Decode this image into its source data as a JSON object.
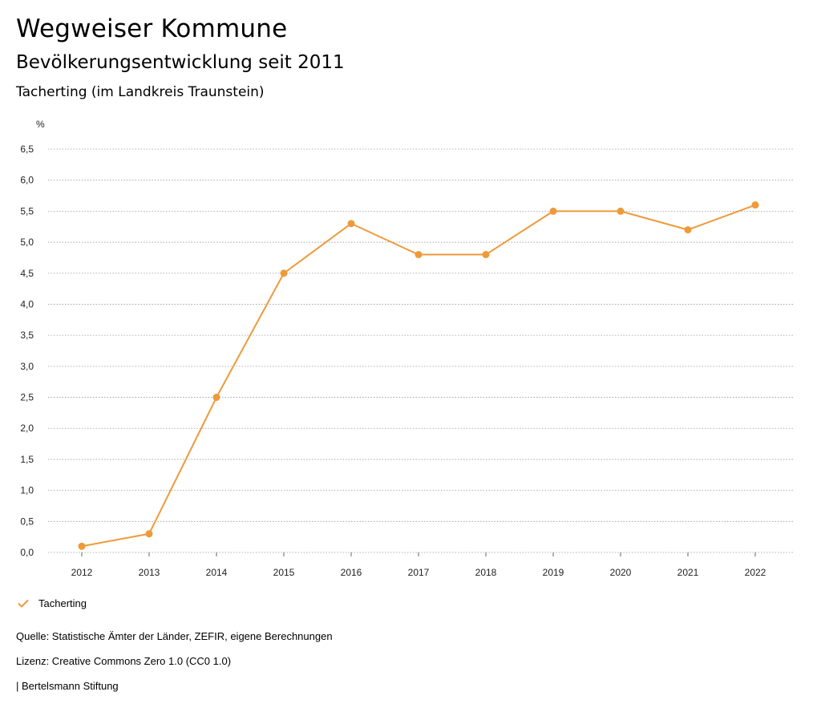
{
  "header": {
    "title": "Wegweiser Kommune",
    "subtitle": "Bevölkerungsentwicklung seit 2011",
    "place": "Tacherting (im Landkreis Traunstein)"
  },
  "chart_data": {
    "type": "line",
    "title": "Bevölkerungsentwicklung seit 2011",
    "ylabel": "%",
    "xlabel": "",
    "ylim": [
      0,
      6.5
    ],
    "yticks": [
      "0,0",
      "0,5",
      "1,0",
      "1,5",
      "2,0",
      "2,5",
      "3,0",
      "3,5",
      "4,0",
      "4,5",
      "5,0",
      "5,5",
      "6,0",
      "6,5"
    ],
    "x": [
      "2012",
      "2013",
      "2014",
      "2015",
      "2016",
      "2017",
      "2018",
      "2019",
      "2020",
      "2021",
      "2022"
    ],
    "series": [
      {
        "name": "Tacherting",
        "color": "#EE9A3A",
        "values": [
          0.1,
          0.3,
          2.5,
          4.5,
          5.3,
          4.8,
          4.8,
          5.5,
          5.5,
          5.2,
          5.6
        ]
      }
    ],
    "grid": true,
    "legend": "bottom-left"
  },
  "legend": {
    "label": "Tacherting"
  },
  "footer": {
    "source": "Quelle: Statistische Ämter der Länder, ZEFIR, eigene Berechnungen",
    "license": "Lizenz: Creative Commons Zero 1.0 (CC0 1.0)",
    "publisher": "| Bertelsmann Stiftung"
  }
}
